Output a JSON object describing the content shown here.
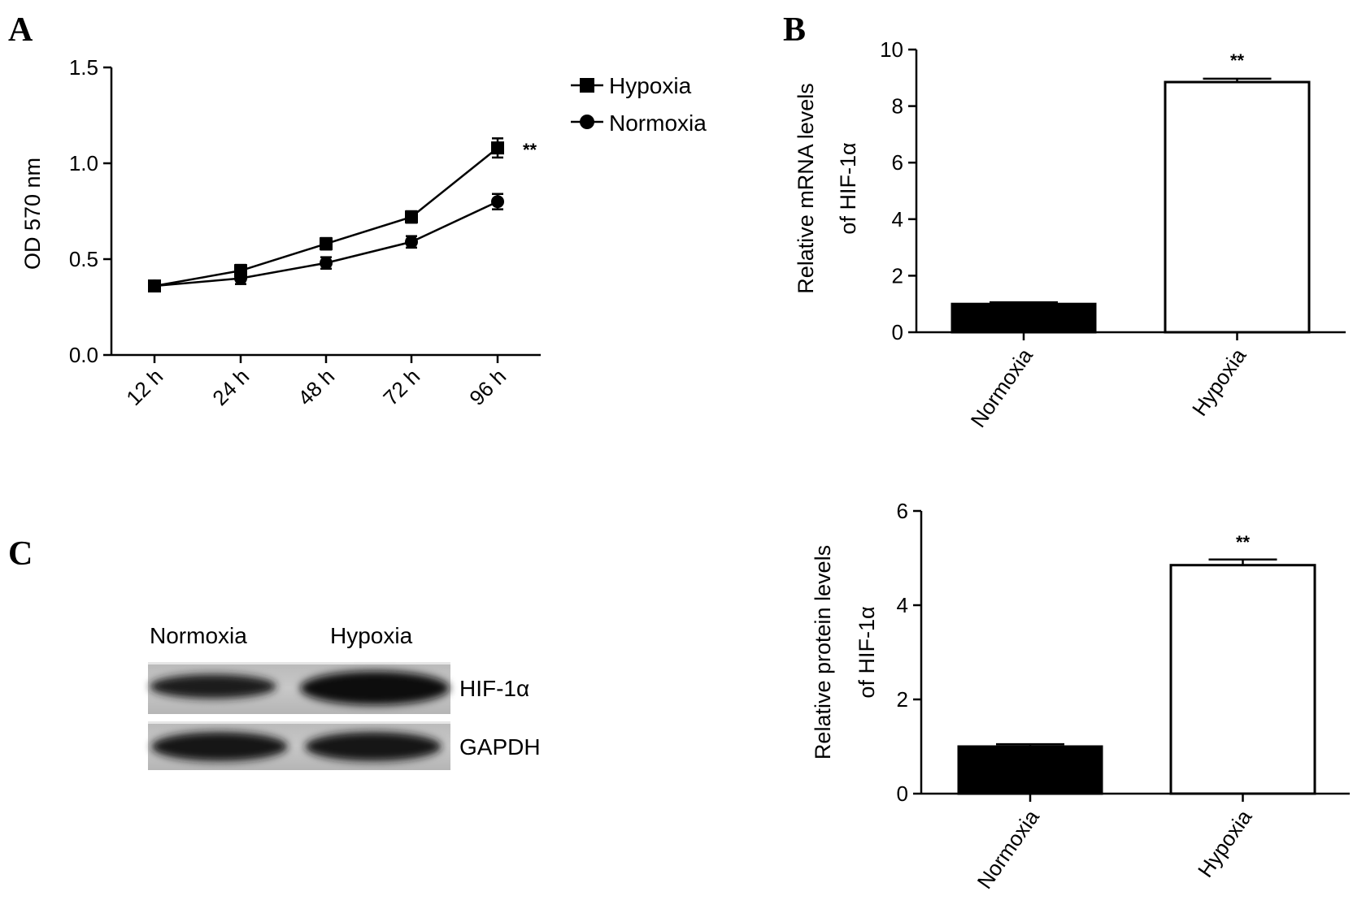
{
  "panels": {
    "a": "A",
    "b": "B",
    "c": "C"
  },
  "chart_data": [
    {
      "id": "A",
      "type": "line",
      "ylabel": "OD 570 nm",
      "xlabel": "",
      "categories": [
        "12 h",
        "24 h",
        "48 h",
        "72 h",
        "96 h"
      ],
      "ylim": [
        0,
        1.5
      ],
      "yticks": [
        "0.0",
        "0.5",
        "1.0",
        "1.5"
      ],
      "legend_position": "top-right",
      "significance": "**",
      "series": [
        {
          "name": "Hypoxia",
          "marker": "square",
          "values": [
            0.36,
            0.44,
            0.58,
            0.72,
            1.08
          ],
          "errors": [
            0.02,
            0.03,
            0.03,
            0.03,
            0.05
          ]
        },
        {
          "name": "Normoxia",
          "marker": "circle",
          "values": [
            0.36,
            0.4,
            0.48,
            0.59,
            0.8
          ],
          "errors": [
            0.02,
            0.03,
            0.03,
            0.03,
            0.04
          ]
        }
      ]
    },
    {
      "id": "B-mRNA",
      "type": "bar",
      "ylabel_line1": "Relative mRNA levels",
      "ylabel_line2": "of HIF-1α",
      "categories": [
        "Normoxia",
        "Hypoxia"
      ],
      "values": [
        1.0,
        8.85
      ],
      "errors": [
        0.06,
        0.12
      ],
      "colors": [
        "#000000",
        "#ffffff"
      ],
      "ylim": [
        0,
        10
      ],
      "yticks": [
        "0",
        "2",
        "4",
        "6",
        "8",
        "10"
      ],
      "significance": "**"
    },
    {
      "id": "B-protein",
      "type": "bar",
      "ylabel_line1": "Relative protein levels",
      "ylabel_line2": "of HIF-1α",
      "categories": [
        "Normoxia",
        "Hypoxia"
      ],
      "values": [
        1.0,
        4.85
      ],
      "errors": [
        0.05,
        0.12
      ],
      "colors": [
        "#000000",
        "#ffffff"
      ],
      "ylim": [
        0,
        6
      ],
      "yticks": [
        "0",
        "2",
        "4",
        "6"
      ],
      "significance": "**"
    }
  ],
  "blot": {
    "lanes": [
      "Normoxia",
      "Hypoxia"
    ],
    "bands": [
      "HIF-1α",
      "GAPDH"
    ]
  }
}
